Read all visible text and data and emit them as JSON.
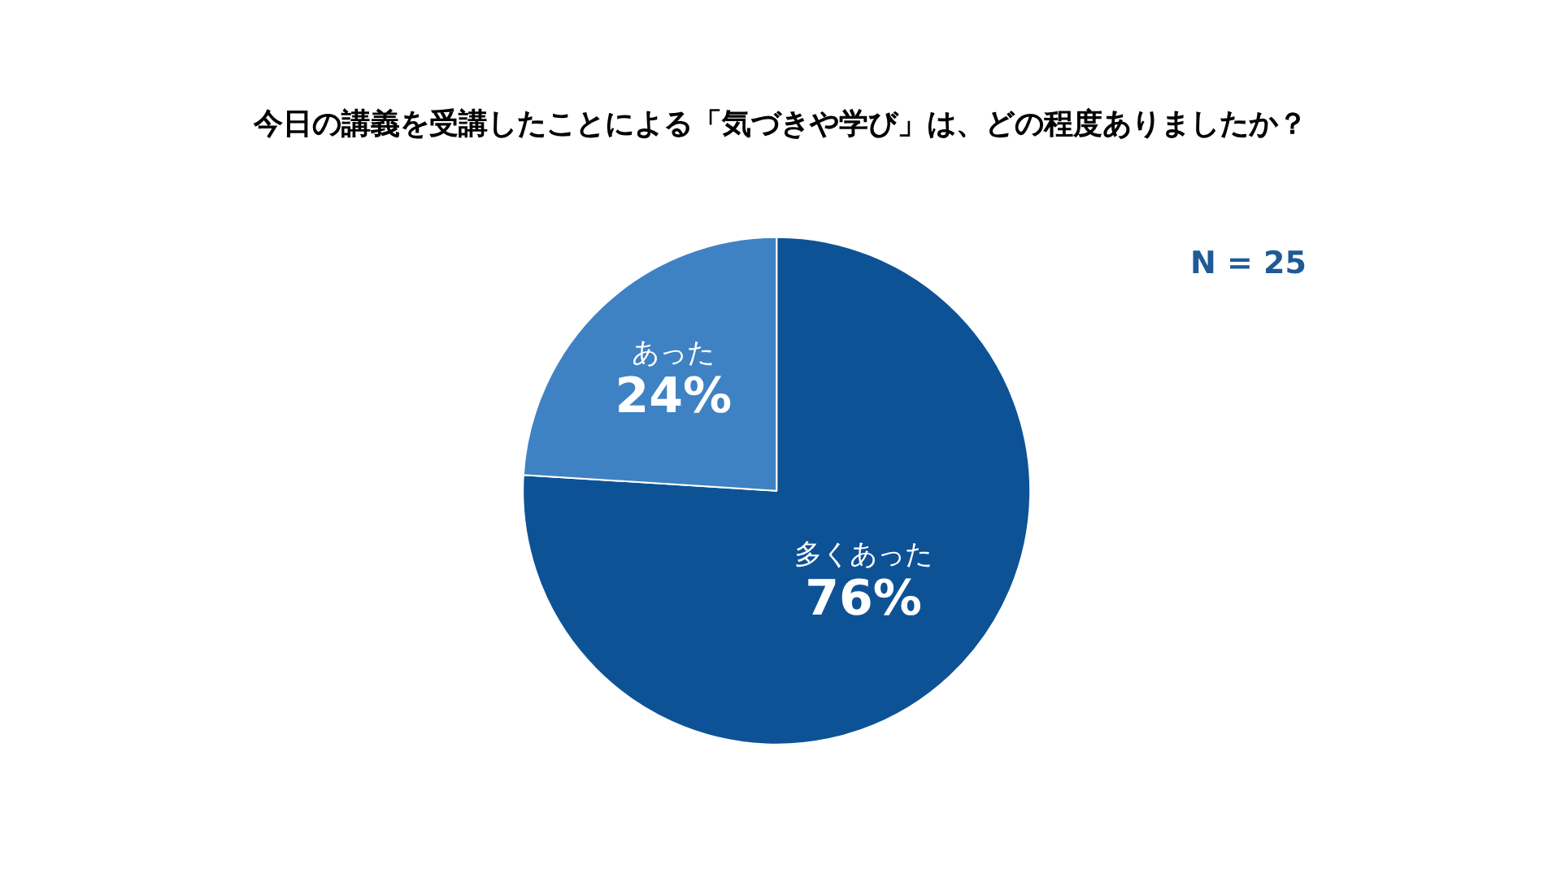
{
  "chart_data": {
    "type": "pie",
    "title": "今日の講義を受講したことによる「気づきや学び」は、どの程度ありましたか？",
    "categories": [
      "多くあった",
      "あった"
    ],
    "values": [
      76,
      24
    ],
    "value_labels": [
      "76%",
      "24%"
    ],
    "colors": [
      "#0e5296",
      "#3f82c4"
    ],
    "annotations": [
      "N = 25"
    ],
    "legend": false
  }
}
